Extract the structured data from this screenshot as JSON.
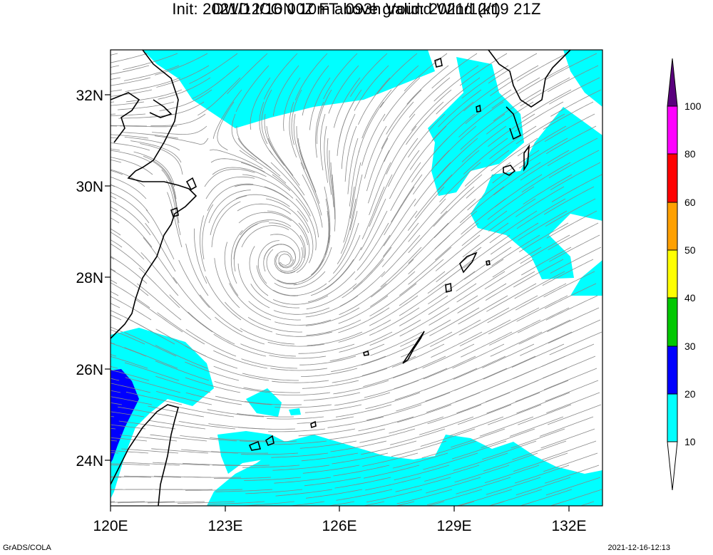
{
  "title_line1": "DWD ICON 10m above ground Wind (kt)",
  "title_line2": "Init: 2021/12/16 00Z  FT: 093h  Valid: 2021/12/19 21Z",
  "lat_labels": [
    "32N",
    "30N",
    "28N",
    "26N",
    "24N"
  ],
  "lon_labels": [
    "120E",
    "123E",
    "126E",
    "129E",
    "132E"
  ],
  "colorbar": {
    "levels": [
      "10",
      "20",
      "30",
      "40",
      "50",
      "60",
      "80",
      "100"
    ],
    "colors": [
      "#00ffff",
      "#0000ff",
      "#00c800",
      "#ffff00",
      "#ffa000",
      "#ff0000",
      "#ff00ff",
      "#5a007d"
    ]
  },
  "footer_left": "GrADS/COLA",
  "footer_right": "2021-12-16-12:13",
  "map_colors": {
    "shade_10_20": "#00ffff",
    "shade_20_30": "#0000ff",
    "coast": "#000000",
    "streamline": "#888888"
  }
}
